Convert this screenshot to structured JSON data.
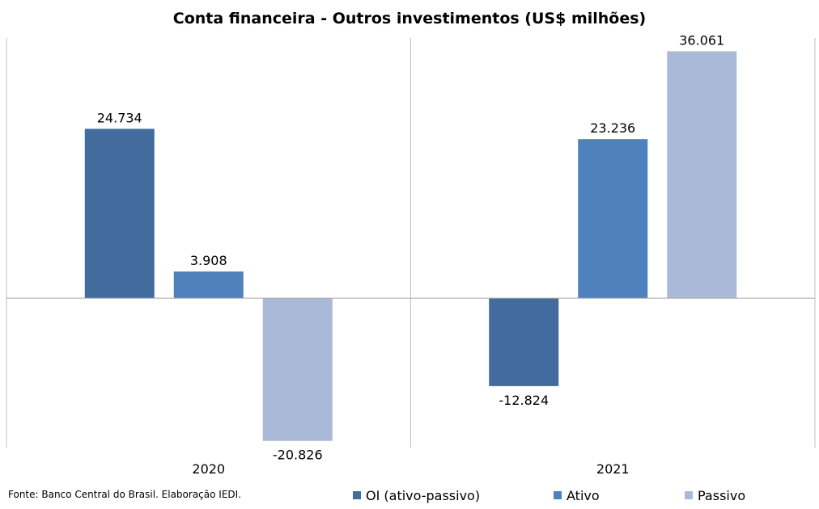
{
  "chart_data": {
    "type": "bar",
    "title": "Conta financeira - Outros investimentos (US$ milhões)",
    "categories": [
      "2020",
      "2021"
    ],
    "series": [
      {
        "name": "OI (ativo-passivo)",
        "color": "#426C9E",
        "values": [
          24734,
          -12824
        ],
        "labels": [
          "24.734",
          "-12.824"
        ]
      },
      {
        "name": "Ativo",
        "color": "#4F81BD",
        "values": [
          3908,
          23236
        ],
        "labels": [
          "3.908",
          "23.236"
        ]
      },
      {
        "name": "Passivo",
        "color": "#AAB9D7",
        "values": [
          -20826,
          36061
        ],
        "labels": [
          "-20.826",
          "36.061"
        ]
      }
    ],
    "ylim": [
      -21800,
      38000
    ],
    "grid": false,
    "legend_position": "bottom-right",
    "source": "Fonte: Banco Central do Brasil. Elaboração IEDI."
  }
}
